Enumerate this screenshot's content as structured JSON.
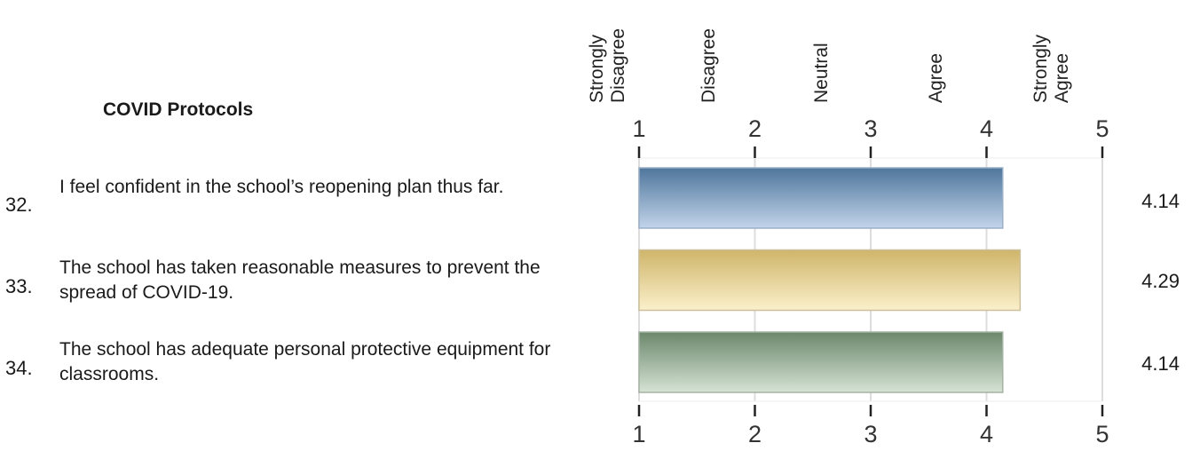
{
  "section_title": "COVID Protocols",
  "scale_labels": [
    "Strongly Disagree",
    "Disagree",
    "Neutral",
    "Agree",
    "Strongly Agree"
  ],
  "questions": [
    {
      "number": "32.",
      "text": "I feel confident in the school’s reopening plan thus far.",
      "value_label": "4.14"
    },
    {
      "number": "33.",
      "text": "The school has taken reasonable measures to prevent the spread of COVID-19.",
      "value_label": "4.29"
    },
    {
      "number": "34.",
      "text": "The school has adequate personal protective equipment for classrooms.",
      "value_label": "4.14"
    }
  ],
  "chart_data": {
    "type": "bar",
    "orientation": "horizontal",
    "categories": [
      "32.",
      "33.",
      "34."
    ],
    "values": [
      4.14,
      4.29,
      4.14
    ],
    "xlim": [
      1,
      5
    ],
    "xticks": [
      1,
      2,
      3,
      4,
      5
    ],
    "grid": true,
    "colors": [
      "#5b82a8",
      "#e3cf86",
      "#7f9b7f"
    ]
  }
}
